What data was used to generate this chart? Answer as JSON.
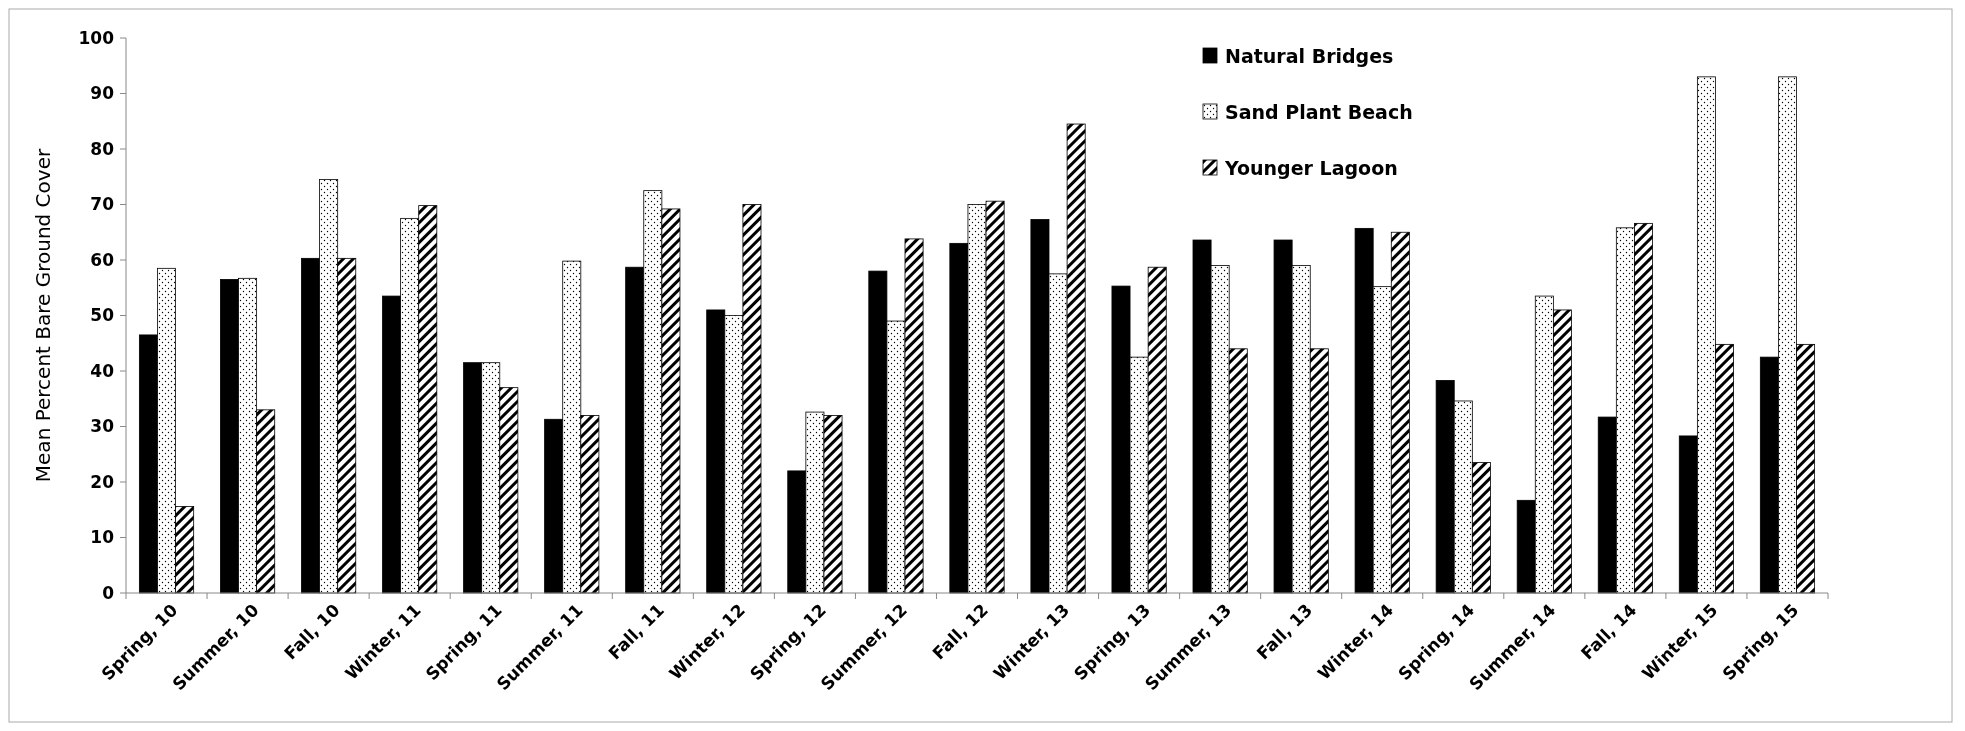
{
  "chart_data": {
    "type": "bar",
    "ylabel": "Mean Percent Bare Ground Cover",
    "categories": [
      "Spring, 10",
      "Summer, 10",
      "Fall, 10",
      "Winter, 11",
      "Spring, 11",
      "Summer, 11",
      "Fall, 11",
      "Winter, 12",
      "Spring, 12",
      "Summer, 12",
      "Fall, 12",
      "Winter, 13",
      "Spring, 13",
      "Summer, 13",
      "Fall, 13",
      "Winter, 14",
      "Spring, 14",
      "Summer, 14",
      "Fall, 14",
      "Winter, 15",
      "Spring, 15"
    ],
    "series": [
      {
        "name": "Natural Bridges",
        "color": "#000000",
        "values": [
          46.5,
          56.5,
          60.3,
          53.5,
          41.5,
          31.3,
          58.7,
          51,
          22,
          58,
          63,
          67.3,
          55.3,
          63.6,
          63.6,
          65.7,
          38.3,
          16.7,
          31.7,
          28.3,
          42.5
        ]
      },
      {
        "name": "Sand Plant Beach",
        "color": "#000000",
        "values": [
          58.5,
          56.7,
          74.5,
          67.5,
          41.5,
          59.8,
          72.5,
          50,
          32.6,
          49,
          70,
          57.5,
          42.5,
          59,
          59,
          55.2,
          34.6,
          53.5,
          65.8,
          93,
          93
        ]
      },
      {
        "name": "Younger Lagoon",
        "color": "#000000",
        "values": [
          15.6,
          33,
          60.3,
          69.8,
          37,
          32,
          69.2,
          70,
          32,
          63.8,
          70.6,
          84.5,
          58.7,
          44,
          44,
          65,
          23.5,
          51,
          66.6,
          44.8,
          44.8
        ]
      }
    ],
    "ylim": [
      0,
      100
    ],
    "yticks": [
      0,
      10,
      20,
      30,
      40,
      50,
      60,
      70,
      80,
      90,
      100
    ],
    "legend": "top right"
  }
}
